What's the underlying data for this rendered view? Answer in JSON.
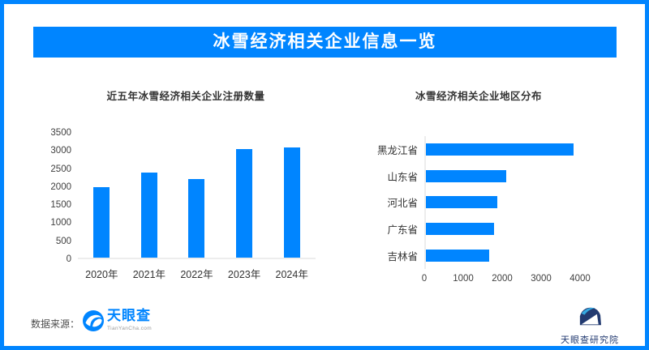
{
  "page": {
    "border_color": "#0085FF",
    "background": "#FFFFFF"
  },
  "header": {
    "title": "冰雪经济相关企业信息一览",
    "bg_color": "#0085FF",
    "text_color": "#FFFFFF"
  },
  "chart_data": [
    {
      "type": "bar",
      "orientation": "vertical",
      "title": "近五年冰雪经济相关企业注册数量",
      "categories": [
        "2020年",
        "2021年",
        "2022年",
        "2023年",
        "2024年"
      ],
      "values": [
        1950,
        2350,
        2170,
        3000,
        3050
      ],
      "xlabel": "",
      "ylabel": "",
      "ylim": [
        0,
        3500
      ],
      "yticks": [
        3500,
        3000,
        2500,
        2000,
        1500,
        1000,
        500,
        0
      ],
      "grid": false,
      "legend": false,
      "bar_color": "#0085FF"
    },
    {
      "type": "bar",
      "orientation": "horizontal",
      "title": "冰雪经济相关企业地区分布",
      "categories": [
        "黑龙江省",
        "山东省",
        "河北省",
        "广东省",
        "吉林省"
      ],
      "values": [
        3800,
        2070,
        1830,
        1750,
        1630
      ],
      "xlabel": "",
      "ylabel": "",
      "xlim": [
        0,
        4000
      ],
      "xticks": [
        0,
        1000,
        2000,
        3000,
        4000
      ],
      "grid": false,
      "legend": false,
      "bar_color": "#0085FF"
    }
  ],
  "footer": {
    "source_label": "数据来源：",
    "tianyancha_logo": {
      "name": "天眼查",
      "domain": "TianYanCha.com",
      "color": "#0085FF"
    },
    "institute_logo": {
      "name": "天眼查研究院",
      "color": "#223A70"
    }
  },
  "icons": {
    "tianyancha_eye": "tianyancha-eye-icon",
    "institute_mark": "institute-logo-icon"
  }
}
